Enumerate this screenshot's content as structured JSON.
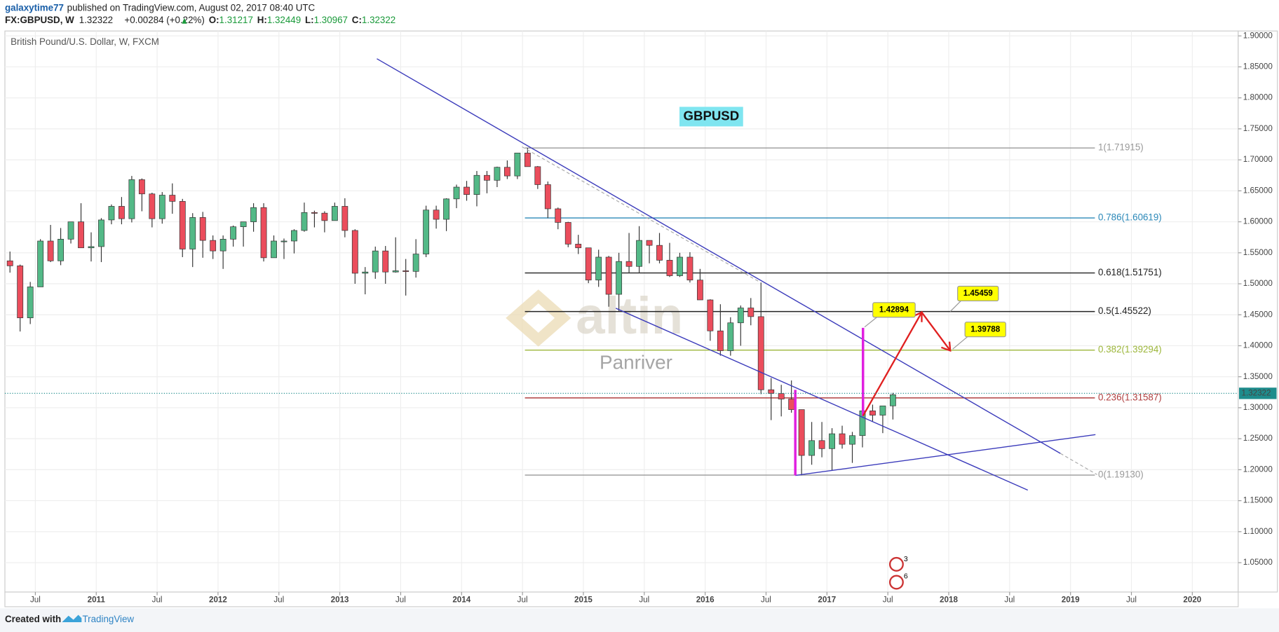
{
  "header": {
    "author": "galaxytime77",
    "published": "published on TradingView.com, August 02, 2017 08:40 UTC",
    "symbol": "FX:GBPUSD, W",
    "last": "1.32322",
    "change": "+0.00284 (+0.22%)",
    "ohlc": [
      {
        "k": "O:",
        "v": "1.31217"
      },
      {
        "k": "H:",
        "v": "1.32449"
      },
      {
        "k": "L:",
        "v": "1.30967"
      },
      {
        "k": "C:",
        "v": "1.32322"
      }
    ]
  },
  "footer": {
    "created": "Created with",
    "brand": "TradingView"
  },
  "chart_data": {
    "type": "candlestick",
    "title": "British Pound/U.S. Dollar, W, FXCM",
    "up_color": "#53b987",
    "down_color": "#eb4d5c",
    "grid": true,
    "x": [
      "2010-04",
      "2010-05",
      "2010-06",
      "2010-07",
      "2010-08",
      "2010-09",
      "2010-10",
      "2010-11",
      "2010-12",
      "2011-01",
      "2011-02",
      "2011-03",
      "2011-04",
      "2011-05",
      "2011-06",
      "2011-07",
      "2011-08",
      "2011-09",
      "2011-10",
      "2011-11",
      "2011-12",
      "2012-01",
      "2012-02",
      "2012-03",
      "2012-04",
      "2012-05",
      "2012-06",
      "2012-07",
      "2012-08",
      "2012-09",
      "2012-10",
      "2012-11",
      "2012-12",
      "2013-01",
      "2013-02",
      "2013-03",
      "2013-04",
      "2013-05",
      "2013-06",
      "2013-07",
      "2013-08",
      "2013-09",
      "2013-10",
      "2013-11",
      "2013-12",
      "2014-01",
      "2014-02",
      "2014-03",
      "2014-04",
      "2014-05",
      "2014-06",
      "2014-07",
      "2014-08",
      "2014-09",
      "2014-10",
      "2014-11",
      "2014-12",
      "2015-01",
      "2015-02",
      "2015-03",
      "2015-04",
      "2015-05",
      "2015-06",
      "2015-07",
      "2015-08",
      "2015-09",
      "2015-10",
      "2015-11",
      "2015-12",
      "2016-01",
      "2016-02",
      "2016-03",
      "2016-04",
      "2016-05",
      "2016-06",
      "2016-07",
      "2016-08",
      "2016-09",
      "2016-10",
      "2016-11",
      "2016-12",
      "2017-01",
      "2017-02",
      "2017-03",
      "2017-04",
      "2017-05",
      "2017-06",
      "2017-07"
    ],
    "open": [
      1.537,
      1.529,
      1.445,
      1.495,
      1.569,
      1.537,
      1.572,
      1.6,
      1.558,
      1.56,
      1.603,
      1.625,
      1.605,
      1.668,
      1.645,
      1.605,
      1.643,
      1.633,
      1.556,
      1.607,
      1.57,
      1.553,
      1.572,
      1.592,
      1.6,
      1.623,
      1.542,
      1.569,
      1.569,
      1.586,
      1.615,
      1.614,
      1.602,
      1.625,
      1.586,
      1.517,
      1.519,
      1.553,
      1.519,
      1.521,
      1.52,
      1.548,
      1.619,
      1.604,
      1.637,
      1.656,
      1.644,
      1.675,
      1.667,
      1.688,
      1.674,
      1.711,
      1.689,
      1.66,
      1.621,
      1.599,
      1.564,
      1.558,
      1.506,
      1.543,
      1.483,
      1.536,
      1.528,
      1.57,
      1.562,
      1.538,
      1.513,
      1.543,
      1.506,
      1.474,
      1.424,
      1.392,
      1.437,
      1.461,
      1.447,
      1.329,
      1.323,
      1.314,
      1.297,
      1.223,
      1.247,
      1.234,
      1.258,
      1.241,
      1.255,
      1.295,
      1.288,
      1.303
    ],
    "high": [
      1.552,
      1.531,
      1.503,
      1.572,
      1.595,
      1.59,
      1.6,
      1.63,
      1.583,
      1.606,
      1.628,
      1.64,
      1.674,
      1.67,
      1.647,
      1.648,
      1.662,
      1.637,
      1.614,
      1.616,
      1.578,
      1.578,
      1.594,
      1.6,
      1.63,
      1.63,
      1.578,
      1.573,
      1.588,
      1.631,
      1.618,
      1.617,
      1.631,
      1.638,
      1.588,
      1.527,
      1.56,
      1.561,
      1.575,
      1.54,
      1.572,
      1.626,
      1.626,
      1.638,
      1.66,
      1.666,
      1.682,
      1.682,
      1.689,
      1.699,
      1.711,
      1.719,
      1.69,
      1.665,
      1.623,
      1.6,
      1.579,
      1.558,
      1.555,
      1.545,
      1.55,
      1.582,
      1.593,
      1.57,
      1.582,
      1.566,
      1.55,
      1.551,
      1.524,
      1.475,
      1.467,
      1.446,
      1.465,
      1.477,
      1.502,
      1.348,
      1.337,
      1.344,
      1.297,
      1.277,
      1.277,
      1.267,
      1.271,
      1.261,
      1.296,
      1.305,
      1.298,
      1.324
    ],
    "low": [
      1.518,
      1.423,
      1.435,
      1.495,
      1.535,
      1.53,
      1.565,
      1.558,
      1.536,
      1.535,
      1.596,
      1.596,
      1.599,
      1.617,
      1.591,
      1.597,
      1.613,
      1.543,
      1.527,
      1.542,
      1.54,
      1.524,
      1.56,
      1.56,
      1.584,
      1.536,
      1.542,
      1.54,
      1.549,
      1.584,
      1.591,
      1.583,
      1.602,
      1.575,
      1.5,
      1.483,
      1.508,
      1.5,
      1.518,
      1.481,
      1.51,
      1.543,
      1.589,
      1.585,
      1.622,
      1.634,
      1.625,
      1.646,
      1.656,
      1.669,
      1.669,
      1.689,
      1.653,
      1.606,
      1.588,
      1.559,
      1.548,
      1.501,
      1.495,
      1.463,
      1.456,
      1.517,
      1.517,
      1.533,
      1.533,
      1.511,
      1.511,
      1.502,
      1.474,
      1.408,
      1.384,
      1.384,
      1.4,
      1.433,
      1.322,
      1.28,
      1.286,
      1.292,
      1.191,
      1.208,
      1.22,
      1.199,
      1.234,
      1.211,
      1.236,
      1.278,
      1.259,
      1.281
    ],
    "close": [
      1.529,
      1.445,
      1.495,
      1.569,
      1.537,
      1.572,
      1.6,
      1.558,
      1.56,
      1.603,
      1.625,
      1.605,
      1.668,
      1.645,
      1.605,
      1.643,
      1.633,
      1.556,
      1.607,
      1.57,
      1.553,
      1.572,
      1.592,
      1.6,
      1.623,
      1.542,
      1.569,
      1.569,
      1.586,
      1.615,
      1.614,
      1.602,
      1.625,
      1.586,
      1.517,
      1.519,
      1.553,
      1.519,
      1.521,
      1.52,
      1.548,
      1.619,
      1.604,
      1.637,
      1.656,
      1.644,
      1.675,
      1.667,
      1.688,
      1.674,
      1.711,
      1.689,
      1.66,
      1.621,
      1.599,
      1.564,
      1.558,
      1.506,
      1.543,
      1.483,
      1.536,
      1.528,
      1.57,
      1.562,
      1.538,
      1.513,
      1.543,
      1.506,
      1.474,
      1.424,
      1.392,
      1.437,
      1.461,
      1.447,
      1.329,
      1.323,
      1.314,
      1.297,
      1.223,
      1.247,
      1.234,
      1.258,
      1.241,
      1.255,
      1.295,
      1.288,
      1.303,
      1.321
    ],
    "xlim": [
      2010.25,
      2020.377
    ],
    "xticks": [
      {
        "value": 2010.5,
        "label": "Jul"
      },
      {
        "value": 2011,
        "label": "2011"
      },
      {
        "value": 2011.5,
        "label": "Jul"
      },
      {
        "value": 2012,
        "label": "2012"
      },
      {
        "value": 2012.5,
        "label": "Jul"
      },
      {
        "value": 2013,
        "label": "2013"
      },
      {
        "value": 2013.5,
        "label": "Jul"
      },
      {
        "value": 2014,
        "label": "2014"
      },
      {
        "value": 2014.5,
        "label": "Jul"
      },
      {
        "value": 2015,
        "label": "2015"
      },
      {
        "value": 2015.5,
        "label": "Jul"
      },
      {
        "value": 2016,
        "label": "2016"
      },
      {
        "value": 2016.5,
        "label": "Jul"
      },
      {
        "value": 2017,
        "label": "2017"
      },
      {
        "value": 2017.5,
        "label": "Jul"
      },
      {
        "value": 2018,
        "label": "2018"
      },
      {
        "value": 2018.5,
        "label": "Jul"
      },
      {
        "value": 2019,
        "label": "2019"
      },
      {
        "value": 2019.5,
        "label": "Jul"
      },
      {
        "value": 2020,
        "label": "2020"
      }
    ],
    "ylim": [
      1.0026,
      1.9079
    ],
    "yticks": [
      {
        "value": 1.05,
        "label": "1.05000"
      },
      {
        "value": 1.1,
        "label": "1.10000"
      },
      {
        "value": 1.15,
        "label": "1.15000"
      },
      {
        "value": 1.2,
        "label": "1.20000"
      },
      {
        "value": 1.25,
        "label": "1.25000"
      },
      {
        "value": 1.3,
        "label": "1.30000"
      },
      {
        "value": 1.35,
        "label": "1.35000"
      },
      {
        "value": 1.4,
        "label": "1.40000"
      },
      {
        "value": 1.45,
        "label": "1.45000"
      },
      {
        "value": 1.5,
        "label": "1.50000"
      },
      {
        "value": 1.55,
        "label": "1.55000"
      },
      {
        "value": 1.6,
        "label": "1.60000"
      },
      {
        "value": 1.65,
        "label": "1.65000"
      },
      {
        "value": 1.7,
        "label": "1.70000"
      },
      {
        "value": 1.75,
        "label": "1.75000"
      },
      {
        "value": 1.8,
        "label": "1.80000"
      },
      {
        "value": 1.85,
        "label": "1.85000"
      },
      {
        "value": 1.9,
        "label": "1.90000"
      }
    ],
    "last_price": 1.32322,
    "last_color": "#1e8c8c",
    "fib_levels": [
      {
        "value": 1.71915,
        "label": "1(1.71915)",
        "color": "#999999"
      },
      {
        "value": 1.60619,
        "label": "0.786(1.60619)",
        "color": "#2b88b8"
      },
      {
        "value": 1.51751,
        "label": "0.618(1.51751)",
        "color": "#222222"
      },
      {
        "value": 1.45522,
        "label": "0.5(1.45522)",
        "color": "#222222"
      },
      {
        "value": 1.39294,
        "label": "0.382(1.39294)",
        "color": "#9cb63a"
      },
      {
        "value": 1.31587,
        "label": "0.236(1.31587)",
        "color": "#b04040"
      },
      {
        "value": 1.1913,
        "label": "0(1.19130)",
        "color": "#999999"
      }
    ],
    "annotations": {
      "symbol_label": "GBPUSD",
      "targets": [
        1.42894,
        1.45459,
        1.39788
      ],
      "watermark": "altin",
      "watermark_sub": "Panriver",
      "events": [
        3,
        6
      ]
    }
  }
}
